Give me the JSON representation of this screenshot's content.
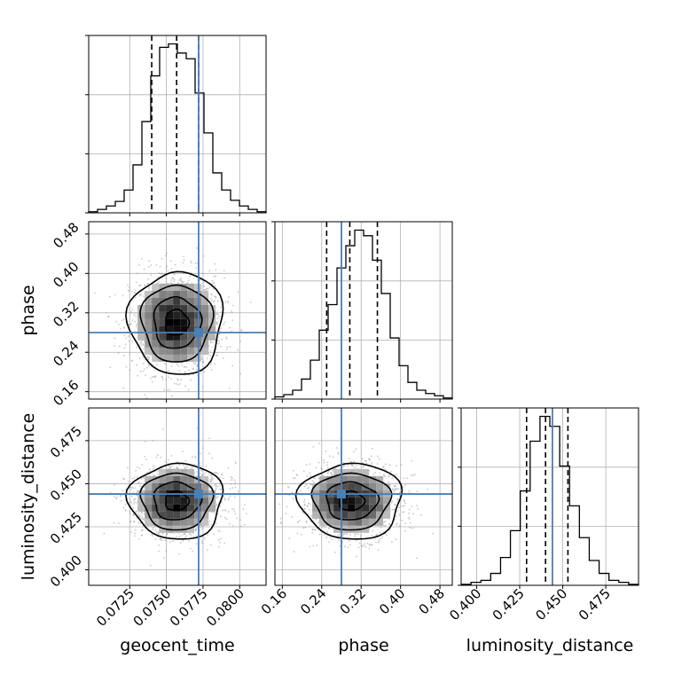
{
  "chart_data": {
    "type": "corner",
    "parameters": [
      "geocent_time",
      "phase",
      "luminosity_distance"
    ],
    "truths": {
      "geocent_time": 0.0772,
      "phase": 0.28,
      "luminosity_distance": 0.444
    },
    "quantiles": {
      "geocent_time": [
        0.074,
        0.0757,
        0.0772
      ],
      "phase": [
        0.25,
        0.297,
        0.353
      ],
      "luminosity_distance": [
        0.429,
        0.44,
        0.453
      ]
    },
    "axes": {
      "geocent_time": {
        "range": [
          0.0697,
          0.0818
        ],
        "ticks": [
          "0.0725",
          "0.0750",
          "0.0775",
          "0.0800"
        ],
        "tick_values": [
          0.0725,
          0.075,
          0.0775,
          0.08
        ]
      },
      "phase": {
        "range": [
          0.145,
          0.505
        ],
        "ticks": [
          "0.16",
          "0.24",
          "0.32",
          "0.40",
          "0.48"
        ],
        "tick_values": [
          0.16,
          0.24,
          0.32,
          0.4,
          0.48
        ]
      },
      "luminosity_distance": {
        "range": [
          0.391,
          0.494
        ],
        "ticks": [
          "0.400",
          "0.425",
          "0.450",
          "0.475"
        ],
        "tick_values": [
          0.4,
          0.425,
          0.45,
          0.475
        ]
      }
    },
    "histograms": {
      "geocent_time": {
        "edges_range": [
          0.0697,
          0.0818
        ],
        "counts": [
          1,
          3,
          6,
          10,
          20,
          42,
          80,
          120,
          145,
          148,
          140,
          135,
          105,
          70,
          35,
          20,
          11,
          6,
          3,
          1
        ]
      },
      "phase": {
        "edges_range": [
          0.145,
          0.505
        ],
        "counts": [
          2,
          4,
          8,
          18,
          35,
          62,
          85,
          118,
          138,
          152,
          147,
          125,
          95,
          55,
          30,
          15,
          8,
          5,
          3,
          1
        ]
      },
      "luminosity_distance": {
        "edges_range": [
          0.391,
          0.494
        ],
        "counts": [
          1,
          3,
          5,
          12,
          28,
          55,
          95,
          145,
          170,
          160,
          120,
          80,
          48,
          25,
          12,
          5,
          3,
          1
        ]
      }
    },
    "grid": true
  }
}
